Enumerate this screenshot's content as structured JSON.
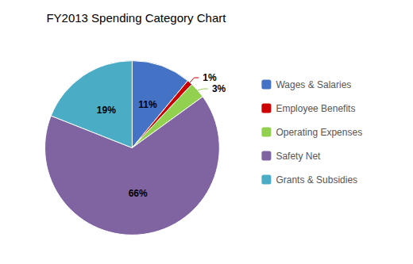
{
  "chart_data": {
    "type": "pie",
    "title": "FY2013 Spending Category Chart",
    "categories": [
      "Wages & Salaries",
      "Employee Benefits",
      "Operating Expenses",
      "Safety Net",
      "Grants & Subsidies"
    ],
    "values": [
      11,
      1,
      3,
      66,
      19
    ],
    "value_labels": [
      "11%",
      "1%",
      "3%",
      "66%",
      "19%"
    ],
    "colors": [
      "#4472C4",
      "#CC0000",
      "#92D050",
      "#8064A2",
      "#4BACC6"
    ],
    "data_labels": true,
    "legend": "right"
  }
}
